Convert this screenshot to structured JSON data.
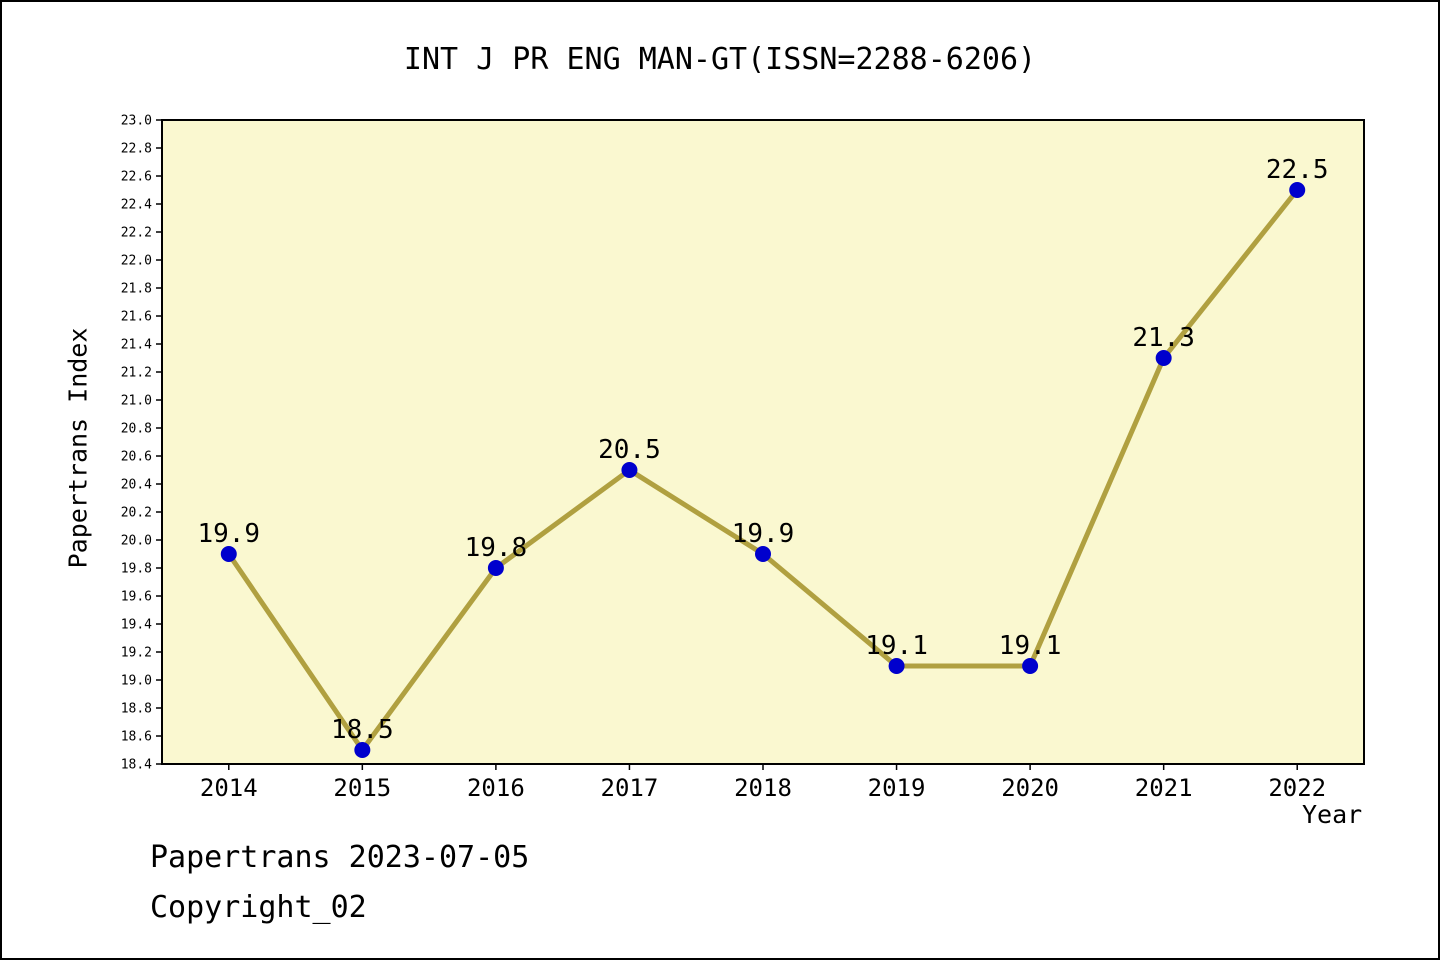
{
  "chart_data": {
    "type": "line",
    "title": "INT J PR ENG MAN-GT(ISSN=2288-6206)",
    "xlabel": "Year",
    "ylabel": "Papertrans Index",
    "categories": [
      2014,
      2015,
      2016,
      2017,
      2018,
      2019,
      2020,
      2021,
      2022
    ],
    "values": [
      19.9,
      18.5,
      19.8,
      20.5,
      19.9,
      19.1,
      19.1,
      21.3,
      22.5
    ],
    "point_labels": [
      "19.9",
      "18.5",
      "19.8",
      "20.5",
      "19.9",
      "19.1",
      "19.1",
      "21.3",
      "22.5"
    ],
    "ylim": [
      18.4,
      23.0
    ],
    "ytick_step": 0.2,
    "grid": false,
    "legend": "none",
    "colors": {
      "line": "#b0a040",
      "marker": "#0000cd",
      "plot_bg": "#faf8d0",
      "axis": "#000000",
      "text": "#000000"
    }
  },
  "footer": {
    "line1": "Papertrans 2023-07-05",
    "line2": "Copyright_02"
  }
}
